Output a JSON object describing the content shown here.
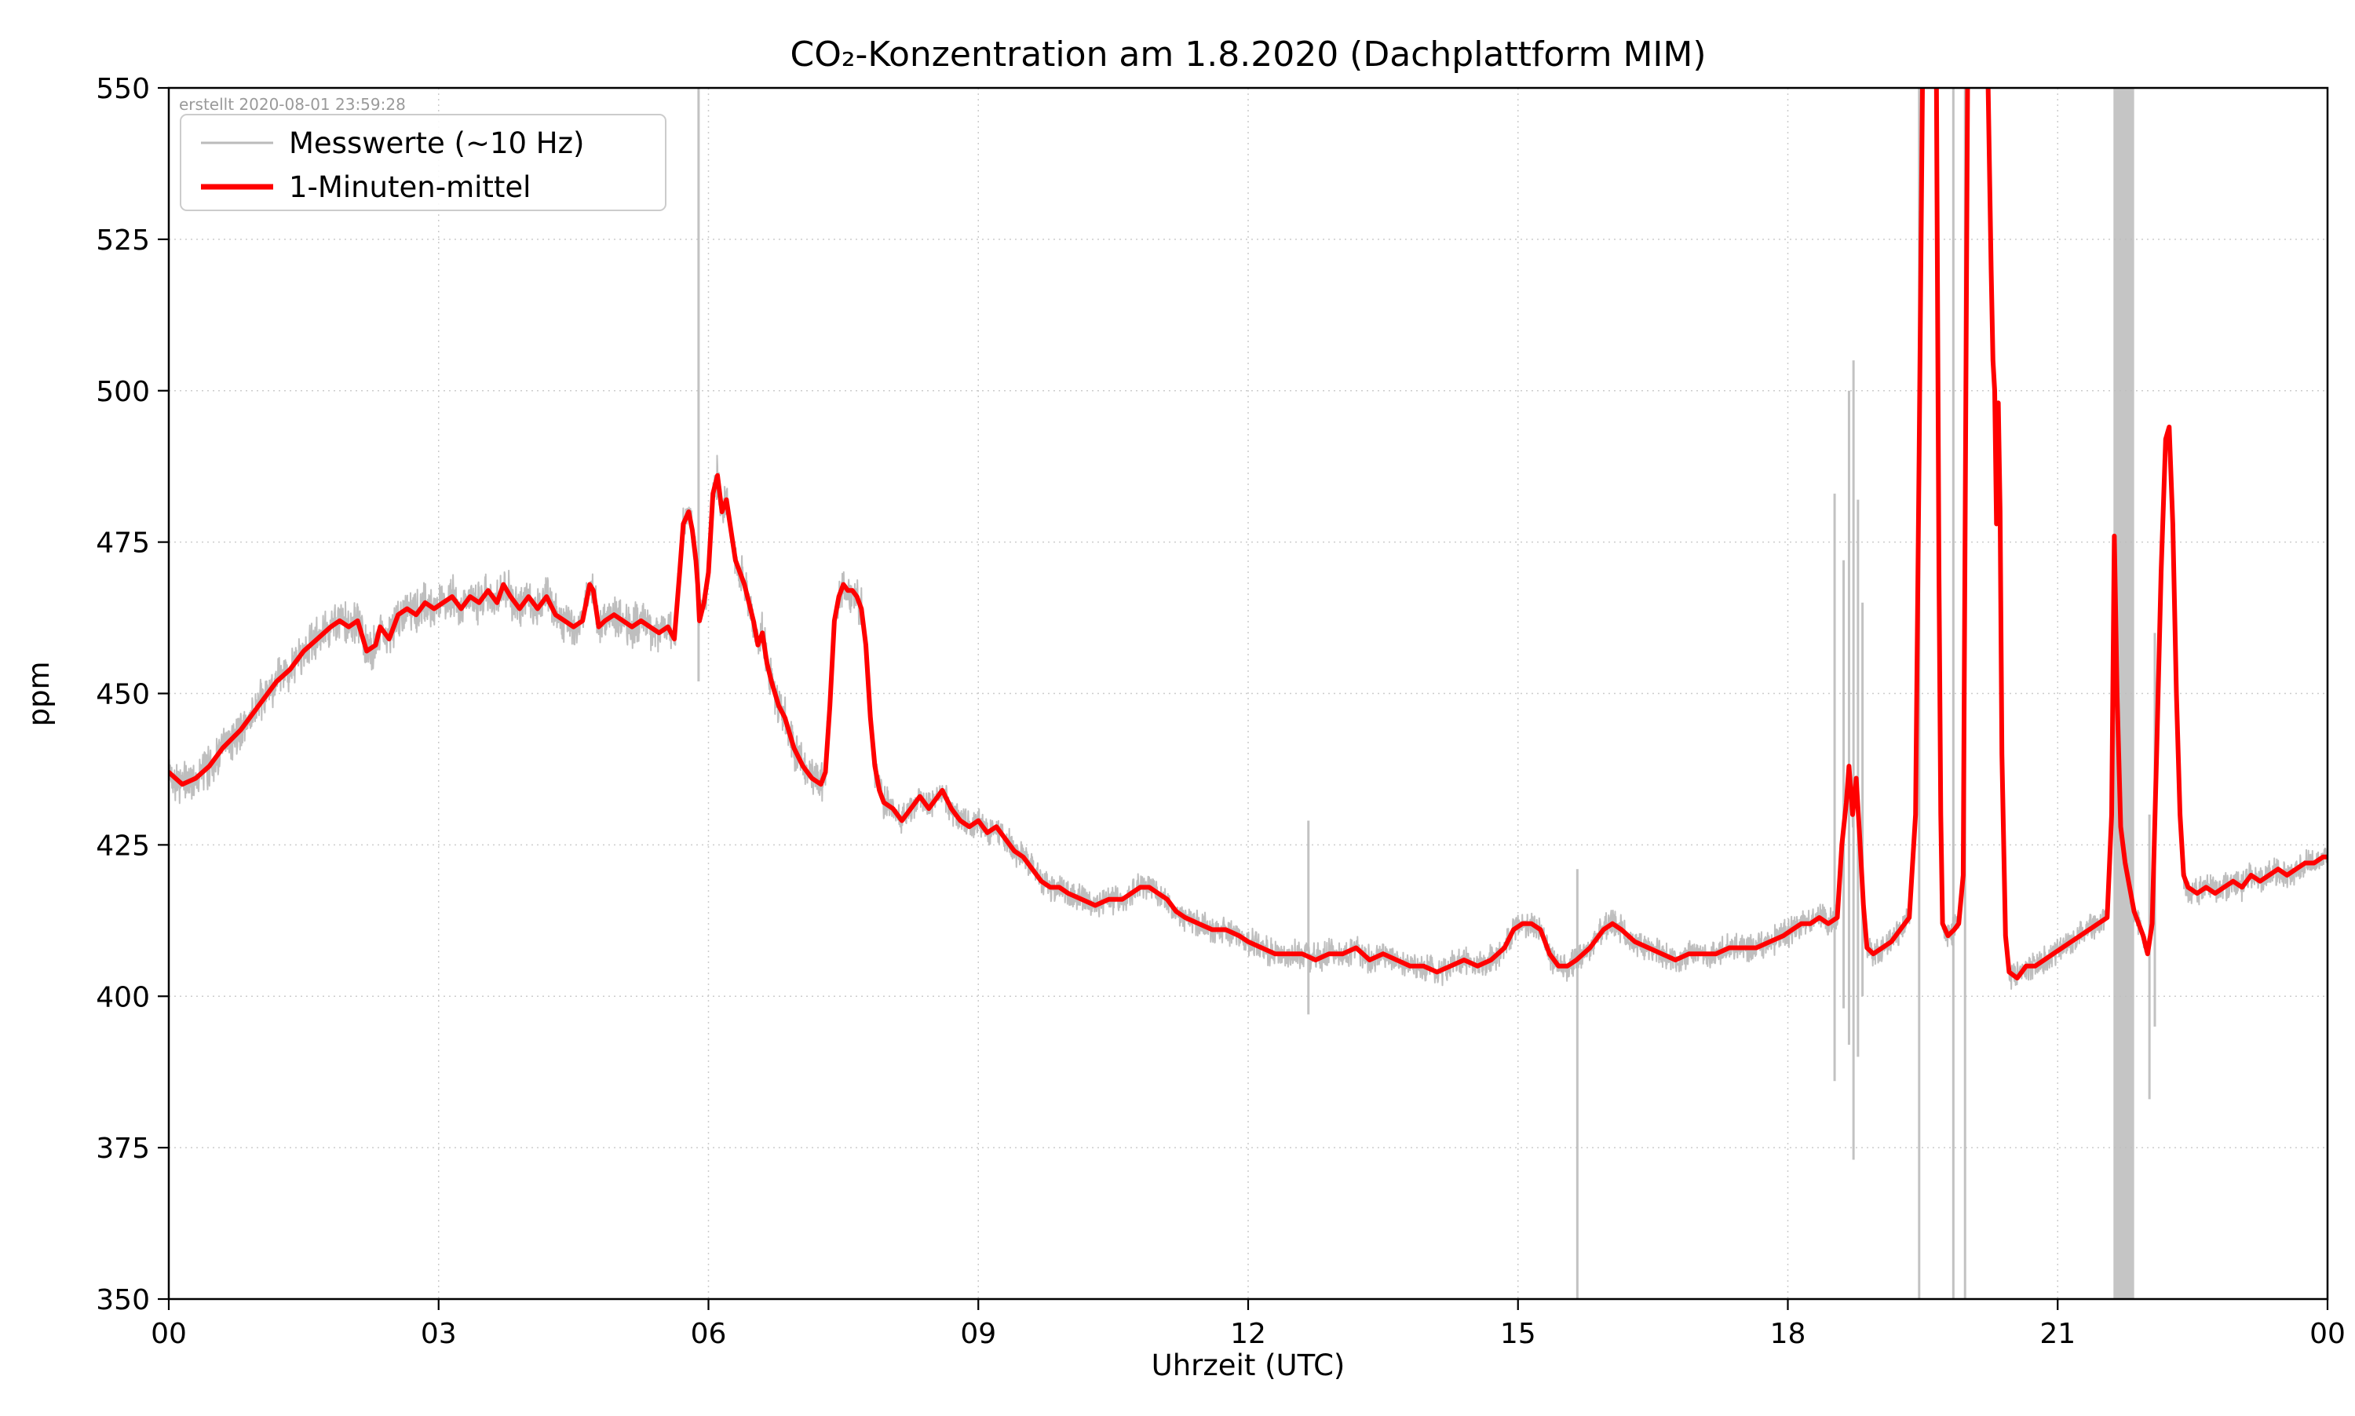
{
  "chart_data": {
    "type": "line",
    "title": "CO₂-Konzentration am 1.8.2020 (Dachplattform MIM)",
    "xlabel": "Uhrzeit (UTC)",
    "ylabel": "ppm",
    "created_note": "erstellt 2020-08-01 23:59:28",
    "xlim": [
      0,
      24
    ],
    "ylim": [
      350,
      550
    ],
    "grid": true,
    "x_ticks": [
      {
        "t": 0,
        "label": "00"
      },
      {
        "t": 3,
        "label": "03"
      },
      {
        "t": 6,
        "label": "06"
      },
      {
        "t": 9,
        "label": "09"
      },
      {
        "t": 12,
        "label": "12"
      },
      {
        "t": 15,
        "label": "15"
      },
      {
        "t": 18,
        "label": "18"
      },
      {
        "t": 21,
        "label": "21"
      },
      {
        "t": 24,
        "label": "00"
      }
    ],
    "y_ticks": [
      350,
      375,
      400,
      425,
      450,
      475,
      500,
      525,
      550
    ],
    "legend": {
      "position": "upper-left",
      "entries": [
        {
          "label": "Messwerte (~10 Hz)",
          "color": "#bbbbbb"
        },
        {
          "label": "1-Minuten-mittel",
          "color": "#ff0000"
        }
      ]
    },
    "series": [
      {
        "name": "1-Minuten-mittel",
        "color": "#ff0000",
        "points": [
          [
            0,
            437
          ],
          [
            0.15,
            435
          ],
          [
            0.3,
            436
          ],
          [
            0.45,
            438
          ],
          [
            0.6,
            441
          ],
          [
            0.8,
            444
          ],
          [
            1.0,
            448
          ],
          [
            1.2,
            452
          ],
          [
            1.35,
            454
          ],
          [
            1.5,
            457
          ],
          [
            1.65,
            459
          ],
          [
            1.8,
            461
          ],
          [
            1.9,
            462
          ],
          [
            2.0,
            461
          ],
          [
            2.1,
            462
          ],
          [
            2.2,
            457
          ],
          [
            2.3,
            458
          ],
          [
            2.35,
            461
          ],
          [
            2.45,
            459
          ],
          [
            2.55,
            463
          ],
          [
            2.65,
            464
          ],
          [
            2.75,
            463
          ],
          [
            2.85,
            465
          ],
          [
            2.95,
            464
          ],
          [
            3.05,
            465
          ],
          [
            3.15,
            466
          ],
          [
            3.25,
            464
          ],
          [
            3.35,
            466
          ],
          [
            3.45,
            465
          ],
          [
            3.55,
            467
          ],
          [
            3.65,
            465
          ],
          [
            3.72,
            468
          ],
          [
            3.8,
            466
          ],
          [
            3.9,
            464
          ],
          [
            4.0,
            466
          ],
          [
            4.1,
            464
          ],
          [
            4.2,
            466
          ],
          [
            4.3,
            463
          ],
          [
            4.4,
            462
          ],
          [
            4.5,
            461
          ],
          [
            4.6,
            462
          ],
          [
            4.68,
            468
          ],
          [
            4.72,
            467
          ],
          [
            4.78,
            461
          ],
          [
            4.85,
            462
          ],
          [
            4.95,
            463
          ],
          [
            5.05,
            462
          ],
          [
            5.15,
            461
          ],
          [
            5.25,
            462
          ],
          [
            5.35,
            461
          ],
          [
            5.45,
            460
          ],
          [
            5.55,
            461
          ],
          [
            5.62,
            459
          ],
          [
            5.68,
            470
          ],
          [
            5.72,
            478
          ],
          [
            5.78,
            480
          ],
          [
            5.82,
            477
          ],
          [
            5.86,
            472
          ],
          [
            5.88,
            468
          ],
          [
            5.9,
            462
          ],
          [
            5.95,
            465
          ],
          [
            6.0,
            470
          ],
          [
            6.05,
            483
          ],
          [
            6.1,
            486
          ],
          [
            6.15,
            480
          ],
          [
            6.2,
            482
          ],
          [
            6.25,
            477
          ],
          [
            6.3,
            472
          ],
          [
            6.4,
            468
          ],
          [
            6.5,
            462
          ],
          [
            6.55,
            458
          ],
          [
            6.6,
            460
          ],
          [
            6.65,
            455
          ],
          [
            6.7,
            452
          ],
          [
            6.78,
            448
          ],
          [
            6.85,
            446
          ],
          [
            6.95,
            441
          ],
          [
            7.05,
            438
          ],
          [
            7.15,
            436
          ],
          [
            7.25,
            435
          ],
          [
            7.3,
            437
          ],
          [
            7.35,
            448
          ],
          [
            7.4,
            462
          ],
          [
            7.45,
            466
          ],
          [
            7.5,
            468
          ],
          [
            7.55,
            467
          ],
          [
            7.6,
            467
          ],
          [
            7.65,
            466
          ],
          [
            7.7,
            464
          ],
          [
            7.75,
            458
          ],
          [
            7.8,
            446
          ],
          [
            7.85,
            438
          ],
          [
            7.9,
            434
          ],
          [
            7.95,
            432
          ],
          [
            8.05,
            431
          ],
          [
            8.15,
            429
          ],
          [
            8.25,
            431
          ],
          [
            8.35,
            433
          ],
          [
            8.45,
            431
          ],
          [
            8.55,
            433
          ],
          [
            8.6,
            434
          ],
          [
            8.7,
            431
          ],
          [
            8.8,
            429
          ],
          [
            8.9,
            428
          ],
          [
            9.0,
            429
          ],
          [
            9.1,
            427
          ],
          [
            9.2,
            428
          ],
          [
            9.3,
            426
          ],
          [
            9.4,
            424
          ],
          [
            9.5,
            423
          ],
          [
            9.6,
            421
          ],
          [
            9.7,
            419
          ],
          [
            9.8,
            418
          ],
          [
            9.9,
            418
          ],
          [
            10.0,
            417
          ],
          [
            10.15,
            416
          ],
          [
            10.3,
            415
          ],
          [
            10.45,
            416
          ],
          [
            10.6,
            416
          ],
          [
            10.7,
            417
          ],
          [
            10.8,
            418
          ],
          [
            10.9,
            418
          ],
          [
            11.0,
            417
          ],
          [
            11.1,
            416
          ],
          [
            11.2,
            414
          ],
          [
            11.3,
            413
          ],
          [
            11.45,
            412
          ],
          [
            11.6,
            411
          ],
          [
            11.75,
            411
          ],
          [
            11.9,
            410
          ],
          [
            12.0,
            409
          ],
          [
            12.15,
            408
          ],
          [
            12.3,
            407
          ],
          [
            12.45,
            407
          ],
          [
            12.6,
            407
          ],
          [
            12.75,
            406
          ],
          [
            12.9,
            407
          ],
          [
            13.05,
            407
          ],
          [
            13.2,
            408
          ],
          [
            13.35,
            406
          ],
          [
            13.5,
            407
          ],
          [
            13.65,
            406
          ],
          [
            13.8,
            405
          ],
          [
            13.95,
            405
          ],
          [
            14.1,
            404
          ],
          [
            14.25,
            405
          ],
          [
            14.4,
            406
          ],
          [
            14.55,
            405
          ],
          [
            14.7,
            406
          ],
          [
            14.85,
            408
          ],
          [
            14.95,
            411
          ],
          [
            15.05,
            412
          ],
          [
            15.15,
            412
          ],
          [
            15.25,
            411
          ],
          [
            15.35,
            407
          ],
          [
            15.45,
            405
          ],
          [
            15.55,
            405
          ],
          [
            15.65,
            406
          ],
          [
            15.8,
            408
          ],
          [
            15.95,
            411
          ],
          [
            16.05,
            412
          ],
          [
            16.15,
            411
          ],
          [
            16.3,
            409
          ],
          [
            16.45,
            408
          ],
          [
            16.6,
            407
          ],
          [
            16.75,
            406
          ],
          [
            16.9,
            407
          ],
          [
            17.05,
            407
          ],
          [
            17.2,
            407
          ],
          [
            17.35,
            408
          ],
          [
            17.5,
            408
          ],
          [
            17.65,
            408
          ],
          [
            17.8,
            409
          ],
          [
            17.95,
            410
          ],
          [
            18.05,
            411
          ],
          [
            18.15,
            412
          ],
          [
            18.25,
            412
          ],
          [
            18.35,
            413
          ],
          [
            18.45,
            412
          ],
          [
            18.55,
            413
          ],
          [
            18.6,
            425
          ],
          [
            18.65,
            432
          ],
          [
            18.68,
            438
          ],
          [
            18.72,
            430
          ],
          [
            18.76,
            436
          ],
          [
            18.8,
            426
          ],
          [
            18.84,
            415
          ],
          [
            18.88,
            408
          ],
          [
            18.95,
            407
          ],
          [
            19.05,
            408
          ],
          [
            19.15,
            409
          ],
          [
            19.25,
            411
          ],
          [
            19.35,
            413
          ],
          [
            19.42,
            430
          ],
          [
            19.46,
            490
          ],
          [
            19.5,
            556
          ],
          [
            19.65,
            556
          ],
          [
            19.68,
            470
          ],
          [
            19.7,
            430
          ],
          [
            19.72,
            412
          ],
          [
            19.78,
            410
          ],
          [
            19.85,
            411
          ],
          [
            19.9,
            412
          ],
          [
            19.95,
            420
          ],
          [
            20.0,
            556
          ],
          [
            20.22,
            556
          ],
          [
            20.26,
            520
          ],
          [
            20.28,
            505
          ],
          [
            20.3,
            500
          ],
          [
            20.32,
            478
          ],
          [
            20.34,
            498
          ],
          [
            20.36,
            480
          ],
          [
            20.38,
            440
          ],
          [
            20.42,
            410
          ],
          [
            20.46,
            404
          ],
          [
            20.55,
            403
          ],
          [
            20.65,
            405
          ],
          [
            20.75,
            405
          ],
          [
            20.85,
            406
          ],
          [
            20.95,
            407
          ],
          [
            21.05,
            408
          ],
          [
            21.15,
            409
          ],
          [
            21.25,
            410
          ],
          [
            21.35,
            411
          ],
          [
            21.45,
            412
          ],
          [
            21.55,
            413
          ],
          [
            21.6,
            430
          ],
          [
            21.63,
            476
          ],
          [
            21.66,
            450
          ],
          [
            21.7,
            428
          ],
          [
            21.75,
            422
          ],
          [
            21.8,
            418
          ],
          [
            21.85,
            414
          ],
          [
            21.9,
            412
          ],
          [
            21.95,
            410
          ],
          [
            22.0,
            407
          ],
          [
            22.05,
            412
          ],
          [
            22.1,
            440
          ],
          [
            22.15,
            470
          ],
          [
            22.2,
            492
          ],
          [
            22.24,
            494
          ],
          [
            22.28,
            478
          ],
          [
            22.32,
            450
          ],
          [
            22.36,
            430
          ],
          [
            22.4,
            420
          ],
          [
            22.45,
            418
          ],
          [
            22.55,
            417
          ],
          [
            22.65,
            418
          ],
          [
            22.75,
            417
          ],
          [
            22.85,
            418
          ],
          [
            22.95,
            419
          ],
          [
            23.05,
            418
          ],
          [
            23.15,
            420
          ],
          [
            23.25,
            419
          ],
          [
            23.35,
            420
          ],
          [
            23.45,
            421
          ],
          [
            23.55,
            420
          ],
          [
            23.65,
            421
          ],
          [
            23.75,
            422
          ],
          [
            23.85,
            422
          ],
          [
            23.95,
            423
          ],
          [
            24,
            423
          ]
        ]
      }
    ],
    "raw": {
      "name": "Messwerte (~10 Hz)",
      "color": "#bbbbbb",
      "noise_ppm": 3,
      "noise_seed": 42,
      "sample_step_h": 0.004,
      "anomaly_lines": [
        [
          5.89,
          452,
          556
        ],
        [
          12.67,
          397,
          429
        ],
        [
          15.66,
          349,
          421
        ],
        [
          18.52,
          386,
          483
        ],
        [
          18.62,
          398,
          472
        ],
        [
          18.68,
          392,
          500
        ],
        [
          18.73,
          373,
          505
        ],
        [
          18.78,
          390,
          482
        ],
        [
          18.83,
          400,
          465
        ],
        [
          19.46,
          349,
          556
        ],
        [
          19.84,
          349,
          556
        ],
        [
          19.97,
          349,
          556
        ],
        [
          22.02,
          383,
          430
        ],
        [
          22.08,
          395,
          460
        ]
      ],
      "anomaly_band": [
        21.62,
        21.85,
        349,
        556
      ]
    }
  }
}
